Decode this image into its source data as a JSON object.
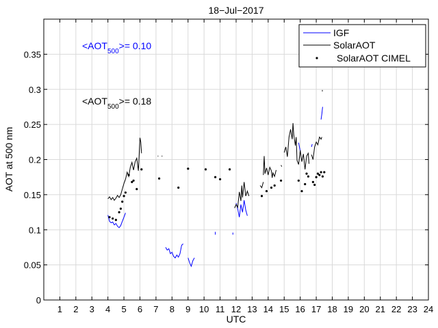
{
  "chart_data": {
    "type": "line",
    "title": "18−Jul−2017",
    "xlabel": "UTC",
    "ylabel": "AOT at 500 nm",
    "xlim": [
      0,
      24
    ],
    "ylim": [
      0,
      0.4
    ],
    "xticks": [
      1,
      2,
      3,
      4,
      5,
      6,
      7,
      8,
      9,
      10,
      11,
      12,
      13,
      14,
      15,
      16,
      17,
      18,
      19,
      20,
      21,
      22,
      23,
      24
    ],
    "yticks": [
      0,
      0.05,
      0.1,
      0.15,
      0.2,
      0.25,
      0.3,
      0.35
    ],
    "ytick_labels": [
      "0",
      "0.05",
      "0.1",
      "0.15",
      "0.2",
      "0.25",
      "0.3",
      "0.35"
    ],
    "grid": true,
    "legend_position": "top-right",
    "colors": {
      "IGF": "#0000ff",
      "SolarAOT": "#000000",
      "CIMEL": "#000000",
      "annotation_igf": "#0000ff",
      "annotation_solar": "#000000"
    },
    "annotations": [
      {
        "id": "igf",
        "prefix": "<AOT",
        "subscript": "500",
        "suffix": ">= 0.10",
        "color": "#0000ff"
      },
      {
        "id": "solar",
        "prefix": "<AOT",
        "subscript": "500",
        "suffix": ">= 0.18",
        "color": "#000000"
      }
    ],
    "series": [
      {
        "name": "IGF",
        "style": "line",
        "segments": [
          [
            [
              4.0,
              0.121
            ],
            [
              4.1,
              0.112
            ],
            [
              4.2,
              0.11
            ],
            [
              4.3,
              0.111
            ],
            [
              4.4,
              0.107
            ],
            [
              4.5,
              0.109
            ],
            [
              4.6,
              0.105
            ],
            [
              4.7,
              0.103
            ],
            [
              4.8,
              0.106
            ],
            [
              4.9,
              0.112
            ],
            [
              5.0,
              0.118
            ],
            [
              5.1,
              0.124
            ]
          ],
          [
            [
              7.6,
              0.075
            ],
            [
              7.7,
              0.071
            ],
            [
              7.8,
              0.073
            ],
            [
              7.9,
              0.066
            ],
            [
              8.0,
              0.068
            ],
            [
              8.1,
              0.062
            ],
            [
              8.2,
              0.06
            ],
            [
              8.3,
              0.064
            ],
            [
              8.4,
              0.061
            ],
            [
              8.5,
              0.066
            ],
            [
              8.6,
              0.078
            ],
            [
              8.7,
              0.08
            ]
          ],
          [
            [
              9.0,
              0.06
            ],
            [
              9.1,
              0.053
            ],
            [
              9.2,
              0.048
            ],
            [
              9.3,
              0.056
            ],
            [
              9.4,
              0.06
            ]
          ],
          [
            [
              10.7,
              0.093
            ],
            [
              10.7,
              0.097
            ]
          ],
          [
            [
              11.8,
              0.093
            ],
            [
              11.8,
              0.096
            ]
          ],
          [
            [
              12.0,
              0.138
            ],
            [
              12.1,
              0.13
            ],
            [
              12.2,
              0.118
            ],
            [
              12.3,
              0.136
            ],
            [
              12.4,
              0.125
            ],
            [
              12.5,
              0.142
            ],
            [
              12.6,
              0.128
            ],
            [
              12.7,
              0.12
            ]
          ],
          [
            [
              15.9,
              0.224
            ],
            [
              16.0,
              0.212
            ]
          ],
          [
            [
              16.7,
              0.218
            ],
            [
              16.75,
              0.222
            ]
          ],
          [
            [
              17.3,
              0.257
            ],
            [
              17.35,
              0.265
            ],
            [
              17.4,
              0.275
            ]
          ]
        ]
      },
      {
        "name": "SolarAOT",
        "style": "line",
        "segments": [
          [
            [
              4.0,
              0.144
            ],
            [
              4.1,
              0.147
            ],
            [
              4.2,
              0.143
            ],
            [
              4.3,
              0.146
            ],
            [
              4.4,
              0.142
            ],
            [
              4.5,
              0.145
            ],
            [
              4.6,
              0.149
            ],
            [
              4.7,
              0.146
            ],
            [
              4.8,
              0.15
            ],
            [
              4.9,
              0.158
            ],
            [
              5.0,
              0.166
            ],
            [
              5.1,
              0.172
            ],
            [
              5.2,
              0.182
            ],
            [
              5.3,
              0.176
            ],
            [
              5.4,
              0.189
            ],
            [
              5.5,
              0.196
            ],
            [
              5.6,
              0.185
            ],
            [
              5.7,
              0.197
            ],
            [
              5.8,
              0.202
            ],
            [
              5.9,
              0.184
            ],
            [
              6.0,
              0.231
            ],
            [
              6.05,
              0.225
            ],
            [
              6.1,
              0.209
            ]
          ],
          [
            [
              7.1,
              0.205
            ],
            [
              7.15,
              0.205
            ]
          ],
          [
            [
              7.35,
              0.205
            ],
            [
              7.4,
              0.205
            ]
          ],
          [
            [
              11.9,
              0.131
            ],
            [
              12.0,
              0.136
            ],
            [
              12.1,
              0.132
            ],
            [
              12.2,
              0.154
            ],
            [
              12.3,
              0.141
            ],
            [
              12.35,
              0.163
            ],
            [
              12.4,
              0.146
            ],
            [
              12.5,
              0.168
            ],
            [
              12.6,
              0.148
            ],
            [
              12.7,
              0.155
            ],
            [
              12.8,
              0.148
            ]
          ],
          [
            [
              13.5,
              0.163
            ],
            [
              13.6,
              0.16
            ],
            [
              13.7,
              0.168
            ]
          ],
          [
            [
              13.7,
              0.178
            ],
            [
              13.75,
              0.205
            ],
            [
              13.8,
              0.18
            ],
            [
              13.9,
              0.188
            ],
            [
              14.0,
              0.178
            ],
            [
              14.1,
              0.189
            ],
            [
              14.2,
              0.184
            ],
            [
              14.25,
              0.174
            ],
            [
              14.3,
              0.181
            ],
            [
              14.4,
              0.176
            ],
            [
              14.5,
              0.185
            ]
          ],
          [
            [
              14.8,
              0.192
            ],
            [
              14.85,
              0.19
            ]
          ],
          [
            [
              15.0,
              0.21
            ],
            [
              15.1,
              0.218
            ],
            [
              15.2,
              0.204
            ],
            [
              15.3,
              0.232
            ],
            [
              15.4,
              0.243
            ],
            [
              15.5,
              0.229
            ],
            [
              15.55,
              0.252
            ],
            [
              15.6,
              0.235
            ],
            [
              15.7,
              0.22
            ],
            [
              15.75,
              0.232
            ],
            [
              15.8,
              0.199
            ],
            [
              15.9,
              0.193
            ],
            [
              16.0,
              0.213
            ],
            [
              16.1,
              0.197
            ],
            [
              16.2,
              0.208
            ],
            [
              16.3,
              0.186
            ],
            [
              16.4,
              0.205
            ],
            [
              16.5,
              0.209
            ],
            [
              16.55,
              0.194
            ]
          ],
          [
            [
              16.7,
              0.207
            ],
            [
              16.8,
              0.2
            ],
            [
              16.9,
              0.218
            ],
            [
              17.0,
              0.225
            ],
            [
              17.1,
              0.221
            ],
            [
              17.2,
              0.232
            ],
            [
              17.3,
              0.229
            ],
            [
              17.35,
              0.232
            ]
          ],
          [
            [
              17.38,
              0.297
            ],
            [
              17.38,
              0.299
            ]
          ]
        ]
      },
      {
        "name": "SolarAOT CIMEL",
        "style": "scatter",
        "points": [
          [
            4.1,
            0.118
          ],
          [
            4.3,
            0.116
          ],
          [
            4.5,
            0.114
          ],
          [
            4.7,
            0.125
          ],
          [
            4.8,
            0.13
          ],
          [
            4.9,
            0.14
          ],
          [
            5.0,
            0.148
          ],
          [
            5.1,
            0.153
          ],
          [
            5.3,
            0.178
          ],
          [
            5.5,
            0.168
          ],
          [
            5.6,
            0.17
          ],
          [
            5.8,
            0.158
          ],
          [
            6.1,
            0.186
          ],
          [
            7.2,
            0.173
          ],
          [
            8.4,
            0.16
          ],
          [
            9.0,
            0.187
          ],
          [
            10.1,
            0.186
          ],
          [
            10.7,
            0.175
          ],
          [
            11.0,
            0.172
          ],
          [
            11.6,
            0.186
          ],
          [
            13.6,
            0.148
          ],
          [
            13.9,
            0.155
          ],
          [
            14.2,
            0.16
          ],
          [
            14.4,
            0.163
          ],
          [
            14.8,
            0.17
          ],
          [
            15.9,
            0.17
          ],
          [
            16.1,
            0.155
          ],
          [
            16.3,
            0.165
          ],
          [
            16.4,
            0.18
          ],
          [
            16.5,
            0.176
          ],
          [
            16.8,
            0.168
          ],
          [
            16.9,
            0.164
          ],
          [
            17.0,
            0.175
          ],
          [
            17.1,
            0.18
          ],
          [
            17.2,
            0.178
          ],
          [
            17.3,
            0.182
          ],
          [
            17.4,
            0.176
          ],
          [
            17.5,
            0.182
          ]
        ]
      }
    ]
  }
}
